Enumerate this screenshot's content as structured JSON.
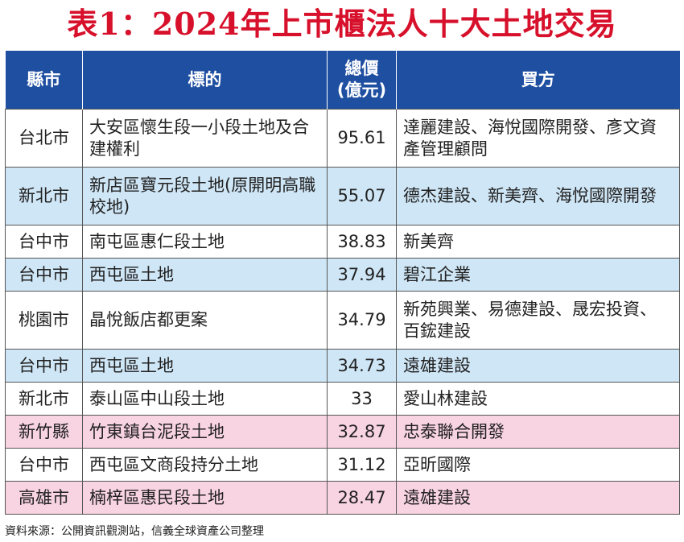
{
  "title": "表1：2024年上市櫃法人十大土地交易",
  "headers": {
    "county": "縣市",
    "target": "標的",
    "amount_line1": "總價",
    "amount_line2": "(億元)",
    "buyer": "買方"
  },
  "rows": [
    {
      "county": "台北市",
      "target": "大安區懷生段一小段土地及合建權利",
      "amount": "95.61",
      "buyer": "達麗建設、海悅國際開發、彥文資產管理顧問",
      "color": "white"
    },
    {
      "county": "新北市",
      "target": "新店區寶元段土地(原開明高職校地)",
      "amount": "55.07",
      "buyer": "德杰建設、新美齊、海悅國際開發",
      "color": "blue"
    },
    {
      "county": "台中市",
      "target": "南屯區惠仁段土地",
      "amount": "38.83",
      "buyer": "新美齊",
      "color": "white"
    },
    {
      "county": "台中市",
      "target": "西屯區土地",
      "amount": "37.94",
      "buyer": "碧江企業",
      "color": "blue"
    },
    {
      "county": "桃園市",
      "target": "晶悅飯店都更案",
      "amount": "34.79",
      "buyer": "新苑興業、易德建設、晟宏投資、百鋐建設",
      "color": "white"
    },
    {
      "county": "台中市",
      "target": "西屯區土地",
      "amount": "34.73",
      "buyer": "遠雄建設",
      "color": "blue"
    },
    {
      "county": "新北市",
      "target": "泰山區中山段土地",
      "amount": "33",
      "buyer": "愛山林建設",
      "color": "white"
    },
    {
      "county": "新竹縣",
      "target": "竹東鎮台泥段土地",
      "amount": "32.87",
      "buyer": "忠泰聯合開發",
      "color": "pink"
    },
    {
      "county": "台中市",
      "target": "西屯區文商段持分土地",
      "amount": "31.12",
      "buyer": "亞昕國際",
      "color": "white"
    },
    {
      "county": "高雄市",
      "target": "楠梓區惠民段土地",
      "amount": "28.47",
      "buyer": "遠雄建設",
      "color": "pink"
    }
  ],
  "source": "資料來源：公開資訊觀測站，信義全球資產公司整理"
}
